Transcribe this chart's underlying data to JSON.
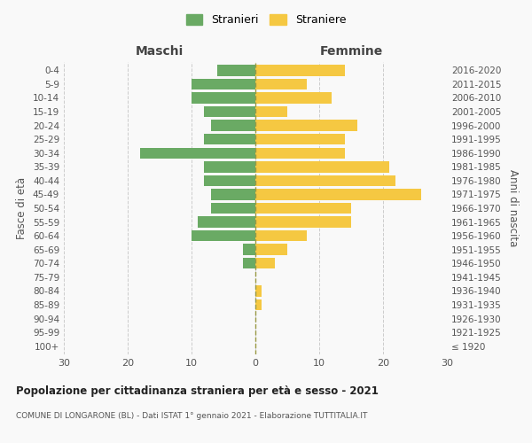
{
  "age_groups": [
    "100+",
    "95-99",
    "90-94",
    "85-89",
    "80-84",
    "75-79",
    "70-74",
    "65-69",
    "60-64",
    "55-59",
    "50-54",
    "45-49",
    "40-44",
    "35-39",
    "30-34",
    "25-29",
    "20-24",
    "15-19",
    "10-14",
    "5-9",
    "0-4"
  ],
  "birth_years": [
    "≤ 1920",
    "1921-1925",
    "1926-1930",
    "1931-1935",
    "1936-1940",
    "1941-1945",
    "1946-1950",
    "1951-1955",
    "1956-1960",
    "1961-1965",
    "1966-1970",
    "1971-1975",
    "1976-1980",
    "1981-1985",
    "1986-1990",
    "1991-1995",
    "1996-2000",
    "2001-2005",
    "2006-2010",
    "2011-2015",
    "2016-2020"
  ],
  "maschi": [
    0,
    0,
    0,
    0,
    0,
    0,
    2,
    2,
    10,
    9,
    7,
    7,
    8,
    8,
    18,
    8,
    7,
    8,
    10,
    10,
    6
  ],
  "femmine": [
    0,
    0,
    0,
    1,
    1,
    0,
    3,
    5,
    8,
    15,
    15,
    26,
    22,
    21,
    14,
    14,
    16,
    5,
    12,
    8,
    14
  ],
  "maschi_color": "#6aaa64",
  "femmine_color": "#f5c842",
  "background_color": "#f9f9f9",
  "grid_color": "#cccccc",
  "title": "Popolazione per cittadinanza straniera per età e sesso - 2021",
  "subtitle": "COMUNE DI LONGARONE (BL) - Dati ISTAT 1° gennaio 2021 - Elaborazione TUTTITALIA.IT",
  "xlabel_left": "Maschi",
  "xlabel_right": "Femmine",
  "ylabel_left": "Fasce di età",
  "ylabel_right": "Anni di nascita",
  "legend_stranieri": "Stranieri",
  "legend_straniere": "Straniere",
  "xlim": 30,
  "bar_height": 0.8
}
